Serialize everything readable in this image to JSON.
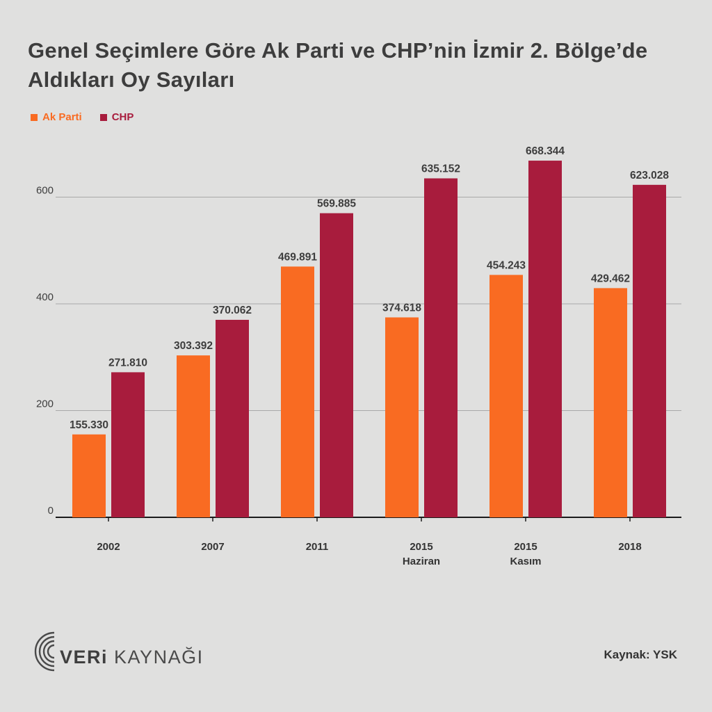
{
  "title": "Genel Seçimlere Göre Ak Parti ve CHP’nin İzmir 2. Bölge’de Aldıkları Oy Sayıları",
  "source": "Kaynak: YSK",
  "logo": {
    "part1": "VERi",
    "part2": "KAYNAĞI"
  },
  "colors": {
    "ak_parti": "#f96b22",
    "chp": "#a81c3d",
    "background": "#e0e0df",
    "grid": "#a8a8a8",
    "axis": "#1a1a1a",
    "text": "#3d3d3d"
  },
  "chart_data": {
    "type": "bar",
    "categories": [
      [
        "2002"
      ],
      [
        "2007"
      ],
      [
        "2011"
      ],
      [
        "2015",
        "Haziran"
      ],
      [
        "2015",
        "Kasım"
      ],
      [
        "2018"
      ]
    ],
    "series": [
      {
        "name": "Ak Parti",
        "color": "#f96b22",
        "values": [
          155.33,
          303.392,
          469.891,
          374.618,
          454.243,
          429.462
        ],
        "labels": [
          "155.330",
          "303.392",
          "469.891",
          "374.618",
          "454.243",
          "429.462"
        ]
      },
      {
        "name": "CHP",
        "color": "#a81c3d",
        "values": [
          271.81,
          370.062,
          569.885,
          635.152,
          668.344,
          623.028
        ],
        "labels": [
          "271.810",
          "370.062",
          "569.885",
          "635.152",
          "668.344",
          "623.028"
        ]
      }
    ],
    "yticks": [
      0,
      200,
      400,
      600
    ],
    "ylim": [
      0,
      700
    ],
    "grid": true,
    "legend_position": "top-left"
  }
}
